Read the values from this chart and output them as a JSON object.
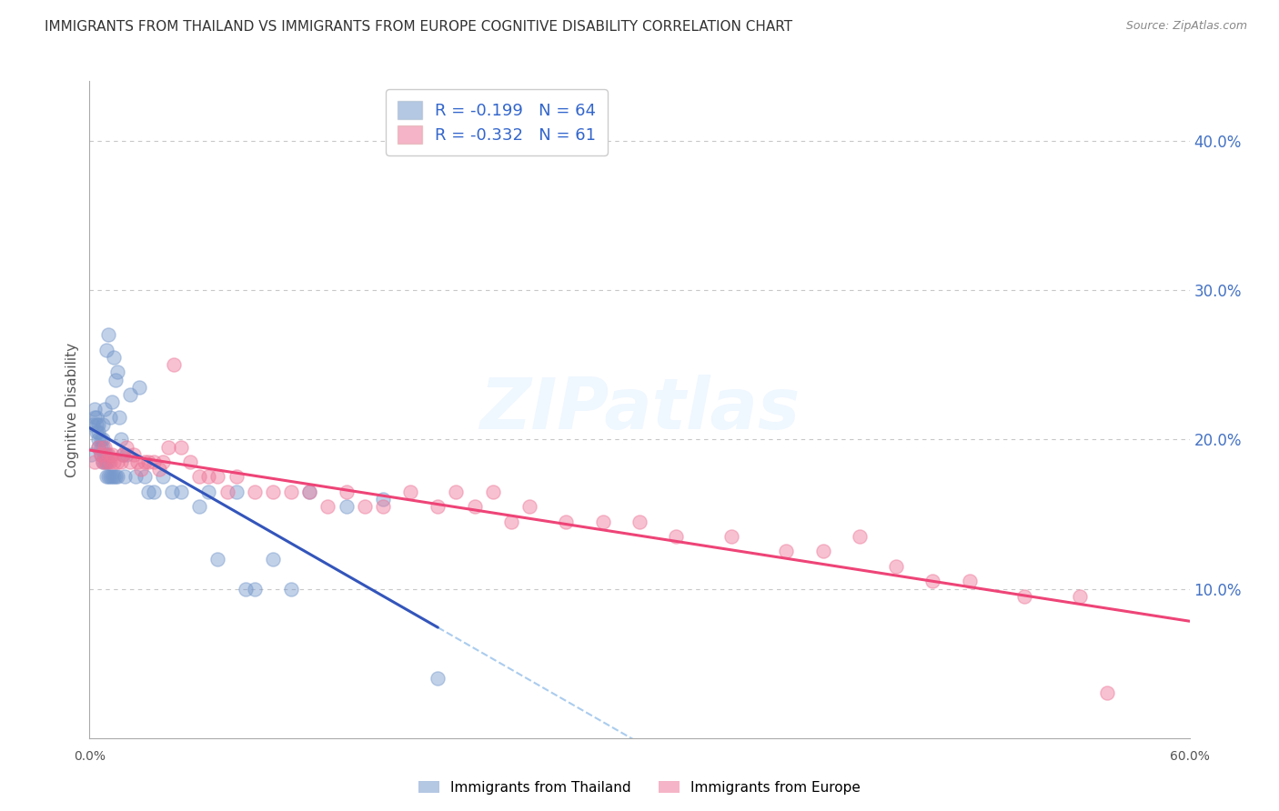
{
  "title": "IMMIGRANTS FROM THAILAND VS IMMIGRANTS FROM EUROPE COGNITIVE DISABILITY CORRELATION CHART",
  "source": "Source: ZipAtlas.com",
  "ylabel": "Cognitive Disability",
  "right_ytick_labels": [
    "40.0%",
    "30.0%",
    "20.0%",
    "10.0%"
  ],
  "right_ytick_values": [
    0.4,
    0.3,
    0.2,
    0.1
  ],
  "xlim": [
    0.0,
    0.6
  ],
  "ylim": [
    0.0,
    0.44
  ],
  "legend1_R": "-0.199",
  "legend1_N": "64",
  "legend2_R": "-0.332",
  "legend2_N": "61",
  "background_color": "#ffffff",
  "grid_color": "#c8c8c8",
  "title_color": "#333333",
  "right_axis_color": "#4472c4",
  "thailand_color": "#7799cc",
  "europe_color": "#ee7799",
  "thailand_line_color": "#3355bb",
  "europe_line_color": "#ee4477",
  "dashed_line_color": "#aaccee",
  "watermark": "ZIPatlas",
  "thailand_x": [
    0.001,
    0.002,
    0.003,
    0.003,
    0.004,
    0.004,
    0.004,
    0.005,
    0.005,
    0.005,
    0.005,
    0.006,
    0.006,
    0.006,
    0.007,
    0.007,
    0.007,
    0.007,
    0.008,
    0.008,
    0.008,
    0.009,
    0.009,
    0.009,
    0.009,
    0.01,
    0.01,
    0.01,
    0.011,
    0.011,
    0.012,
    0.012,
    0.013,
    0.013,
    0.014,
    0.014,
    0.015,
    0.015,
    0.016,
    0.017,
    0.018,
    0.019,
    0.02,
    0.022,
    0.025,
    0.027,
    0.03,
    0.032,
    0.035,
    0.04,
    0.045,
    0.05,
    0.06,
    0.065,
    0.07,
    0.08,
    0.085,
    0.09,
    0.1,
    0.11,
    0.12,
    0.14,
    0.16,
    0.19
  ],
  "thailand_y": [
    0.19,
    0.21,
    0.215,
    0.22,
    0.205,
    0.21,
    0.215,
    0.195,
    0.2,
    0.205,
    0.21,
    0.19,
    0.195,
    0.2,
    0.185,
    0.195,
    0.2,
    0.21,
    0.185,
    0.19,
    0.22,
    0.175,
    0.185,
    0.19,
    0.26,
    0.175,
    0.185,
    0.27,
    0.175,
    0.215,
    0.175,
    0.225,
    0.175,
    0.255,
    0.175,
    0.24,
    0.175,
    0.245,
    0.215,
    0.2,
    0.19,
    0.175,
    0.19,
    0.23,
    0.175,
    0.235,
    0.175,
    0.165,
    0.165,
    0.175,
    0.165,
    0.165,
    0.155,
    0.165,
    0.12,
    0.165,
    0.1,
    0.1,
    0.12,
    0.1,
    0.165,
    0.155,
    0.16,
    0.04
  ],
  "europe_x": [
    0.003,
    0.005,
    0.006,
    0.007,
    0.008,
    0.009,
    0.01,
    0.011,
    0.012,
    0.013,
    0.015,
    0.017,
    0.018,
    0.02,
    0.022,
    0.024,
    0.026,
    0.028,
    0.03,
    0.032,
    0.035,
    0.038,
    0.04,
    0.043,
    0.046,
    0.05,
    0.055,
    0.06,
    0.065,
    0.07,
    0.075,
    0.08,
    0.09,
    0.1,
    0.11,
    0.12,
    0.13,
    0.14,
    0.15,
    0.16,
    0.175,
    0.19,
    0.2,
    0.21,
    0.22,
    0.23,
    0.24,
    0.26,
    0.28,
    0.3,
    0.32,
    0.35,
    0.38,
    0.4,
    0.42,
    0.44,
    0.46,
    0.48,
    0.51,
    0.54,
    0.555
  ],
  "europe_y": [
    0.185,
    0.195,
    0.19,
    0.185,
    0.195,
    0.185,
    0.19,
    0.185,
    0.19,
    0.185,
    0.185,
    0.185,
    0.19,
    0.195,
    0.185,
    0.19,
    0.185,
    0.18,
    0.185,
    0.185,
    0.185,
    0.18,
    0.185,
    0.195,
    0.25,
    0.195,
    0.185,
    0.175,
    0.175,
    0.175,
    0.165,
    0.175,
    0.165,
    0.165,
    0.165,
    0.165,
    0.155,
    0.165,
    0.155,
    0.155,
    0.165,
    0.155,
    0.165,
    0.155,
    0.165,
    0.145,
    0.155,
    0.145,
    0.145,
    0.145,
    0.135,
    0.135,
    0.125,
    0.125,
    0.135,
    0.115,
    0.105,
    0.105,
    0.095,
    0.095,
    0.03
  ]
}
